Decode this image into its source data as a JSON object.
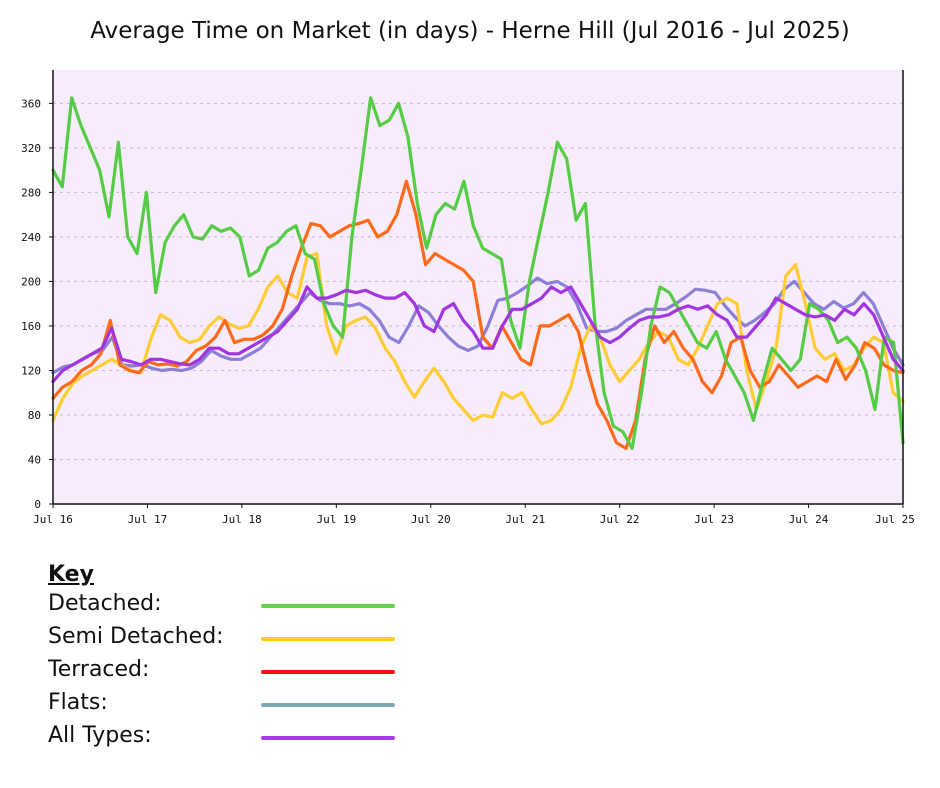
{
  "chart_data": {
    "type": "line",
    "title": "Average Time on Market (in days) - Herne Hill (Jul 2016 - Jul 2025)",
    "ylim": [
      0,
      390
    ],
    "yticks": [
      0,
      40,
      80,
      120,
      160,
      200,
      240,
      280,
      320,
      360
    ],
    "x_start_label": "Jul 16",
    "x_end_label": "Jul 25",
    "xtick_labels": [
      "Jul 16",
      "Jul 17",
      "Jul 18",
      "Jul 19",
      "Jul 20",
      "Jul 21",
      "Jul 22",
      "Jul 23",
      "Jul 24",
      "Jul 25"
    ],
    "grid": true,
    "series": [
      {
        "name": "Flats",
        "color": "#8d7fd8",
        "values": [
          118,
          123,
          125,
          130,
          135,
          138,
          150,
          125,
          124,
          125,
          122,
          120,
          121,
          120,
          122,
          128,
          138,
          133,
          130,
          130,
          135,
          140,
          150,
          160,
          170,
          180,
          190,
          183,
          180,
          180,
          178,
          180,
          175,
          165,
          150,
          145,
          160,
          178,
          172,
          160,
          150,
          142,
          138,
          142,
          160,
          183,
          185,
          190,
          196,
          203,
          198,
          200,
          195,
          180,
          158,
          155,
          155,
          158,
          165,
          170,
          175,
          175,
          175,
          180,
          186,
          193,
          192,
          190,
          178,
          168,
          160,
          165,
          172,
          180,
          193,
          200,
          190,
          180,
          175,
          182,
          176,
          180,
          190,
          180,
          160,
          140,
          125
        ]
      },
      {
        "name": "Semi Detached",
        "color": "#ffcc33",
        "values": [
          75,
          95,
          108,
          115,
          120,
          125,
          130,
          125,
          120,
          118,
          148,
          170,
          165,
          150,
          145,
          148,
          160,
          168,
          162,
          158,
          160,
          175,
          195,
          205,
          190,
          185,
          222,
          225,
          160,
          135,
          160,
          165,
          168,
          158,
          140,
          128,
          110,
          96,
          110,
          122,
          110,
          95,
          85,
          75,
          80,
          78,
          100,
          95,
          100,
          85,
          72,
          75,
          85,
          105,
          140,
          160,
          150,
          125,
          110,
          120,
          130,
          145,
          155,
          150,
          130,
          125,
          140,
          160,
          180,
          185,
          180,
          120,
          85,
          110,
          140,
          205,
          215,
          180,
          140,
          130,
          135,
          120,
          125,
          140,
          150,
          145,
          100,
          92
        ]
      },
      {
        "name": "Terraced",
        "color": "#ff6a1a",
        "values": [
          95,
          105,
          110,
          120,
          125,
          135,
          165,
          125,
          120,
          118,
          128,
          125,
          126,
          124,
          128,
          138,
          142,
          150,
          165,
          145,
          148,
          148,
          152,
          160,
          175,
          205,
          230,
          252,
          250,
          240,
          245,
          250,
          252,
          255,
          240,
          245,
          260,
          290,
          260,
          215,
          225,
          220,
          215,
          210,
          200,
          150,
          140,
          160,
          145,
          130,
          125,
          160,
          160,
          165,
          170,
          155,
          120,
          90,
          75,
          55,
          50,
          75,
          130,
          160,
          145,
          155,
          140,
          130,
          110,
          100,
          115,
          145,
          150,
          120,
          105,
          110,
          125,
          115,
          105,
          110,
          115,
          110,
          130,
          112,
          125,
          145,
          140,
          125,
          120,
          118
        ]
      },
      {
        "name": "Detached",
        "color": "#55cc44",
        "values": [
          300,
          285,
          365,
          340,
          320,
          300,
          258,
          325,
          240,
          225,
          280,
          190,
          235,
          250,
          260,
          240,
          238,
          250,
          245,
          248,
          240,
          205,
          210,
          230,
          235,
          245,
          250,
          225,
          220,
          180,
          160,
          150,
          240,
          300,
          365,
          340,
          345,
          360,
          330,
          270,
          230,
          260,
          270,
          265,
          290,
          250,
          230,
          225,
          220,
          165,
          140,
          200,
          240,
          280,
          325,
          310,
          255,
          270,
          165,
          100,
          70,
          65,
          50,
          100,
          160,
          195,
          190,
          175,
          160,
          145,
          140,
          155,
          130,
          115,
          100,
          75,
          110,
          140,
          130,
          120,
          130,
          180,
          175,
          165,
          145,
          150,
          140,
          120,
          85,
          150,
          145,
          55
        ]
      },
      {
        "name": "All Types",
        "color": "#a235e0",
        "values": [
          110,
          120,
          125,
          130,
          135,
          140,
          158,
          130,
          128,
          125,
          130,
          130,
          128,
          126,
          125,
          130,
          140,
          140,
          135,
          135,
          140,
          145,
          150,
          155,
          165,
          175,
          195,
          185,
          185,
          188,
          192,
          190,
          192,
          188,
          185,
          185,
          190,
          180,
          160,
          155,
          175,
          180,
          165,
          155,
          140,
          140,
          160,
          175,
          175,
          180,
          185,
          195,
          190,
          195,
          180,
          165,
          150,
          145,
          150,
          158,
          165,
          168,
          168,
          170,
          175,
          178,
          175,
          178,
          170,
          165,
          150,
          150,
          160,
          170,
          185,
          180,
          175,
          170,
          168,
          170,
          165,
          175,
          170,
          180,
          170,
          150,
          130,
          120
        ]
      }
    ]
  },
  "key": {
    "title": "Key",
    "entries": [
      {
        "label": "Detached:",
        "color": "#61d447"
      },
      {
        "label": "Semi Detached:",
        "color": "#ffcc11"
      },
      {
        "label": "Terraced:",
        "color": "#ff1010"
      },
      {
        "label": "Flats:",
        "color": "#80a8b0"
      },
      {
        "label": "All Types:",
        "color": "#a53be0"
      }
    ]
  }
}
